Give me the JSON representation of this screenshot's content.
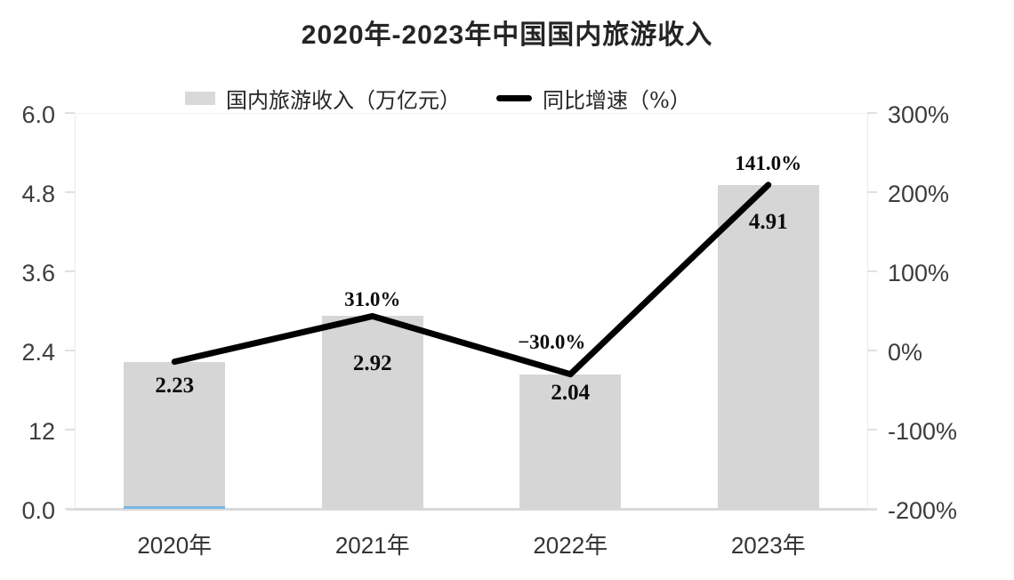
{
  "title": "2020年-2023年中国国内旅游收入",
  "legend": [
    {
      "label": "国内旅游收入（万亿元）",
      "swatch": "bar-swatch",
      "color": "#d9d9d9"
    },
    {
      "label": "同比增速（%）",
      "swatch": "line-swatch",
      "color": "#000000"
    }
  ],
  "chart_data": {
    "type": "bar",
    "subtype": "bar-line-combo",
    "title": "2020年-2023年中国国内旅游收入",
    "categories": [
      "2020年",
      "2021年",
      "2022年",
      "2023年"
    ],
    "series": [
      {
        "name": "国内旅游收入（万亿元）",
        "type": "bar",
        "axis": "left",
        "values": [
          2.23,
          2.92,
          2.04,
          4.91
        ],
        "labels": [
          "2.23",
          "2.92",
          "2.04",
          "4.91"
        ],
        "color": "#d6d6d6"
      },
      {
        "name": "同比增速（%）",
        "type": "line",
        "axis": "right",
        "values": [
          null,
          31.0,
          -30.0,
          141.0
        ],
        "labels": [
          "",
          "31.0%",
          "−30.0%",
          "141.0%"
        ],
        "color": "#000000",
        "note": "line is drawn passing through the tops of the bars"
      }
    ],
    "left_axis": {
      "ticks_bottom_to_top": [
        "0.0",
        "12",
        "2.4",
        "3.6",
        "4.8",
        "6.0"
      ],
      "range": [
        0,
        6.0
      ]
    },
    "right_axis": {
      "ticks_bottom_to_top": [
        "-200%",
        "-100%",
        "0%",
        "100%",
        "200%",
        "300%"
      ],
      "range": [
        -200,
        300
      ]
    },
    "grid": "off",
    "legend_position": "top",
    "stray_mark": {
      "description": "thin light-blue sliver at base of 2020 bar",
      "color": "#76b7e3",
      "category_index": 0
    }
  },
  "colors": {
    "bar": "#d6d6d6",
    "line": "#000000",
    "stray_bar": "#76b7e3",
    "axis_line": "#ececec",
    "baseline": "#d9d9d9",
    "title_text": "#242424",
    "tick_text": "#3d3d3d"
  }
}
